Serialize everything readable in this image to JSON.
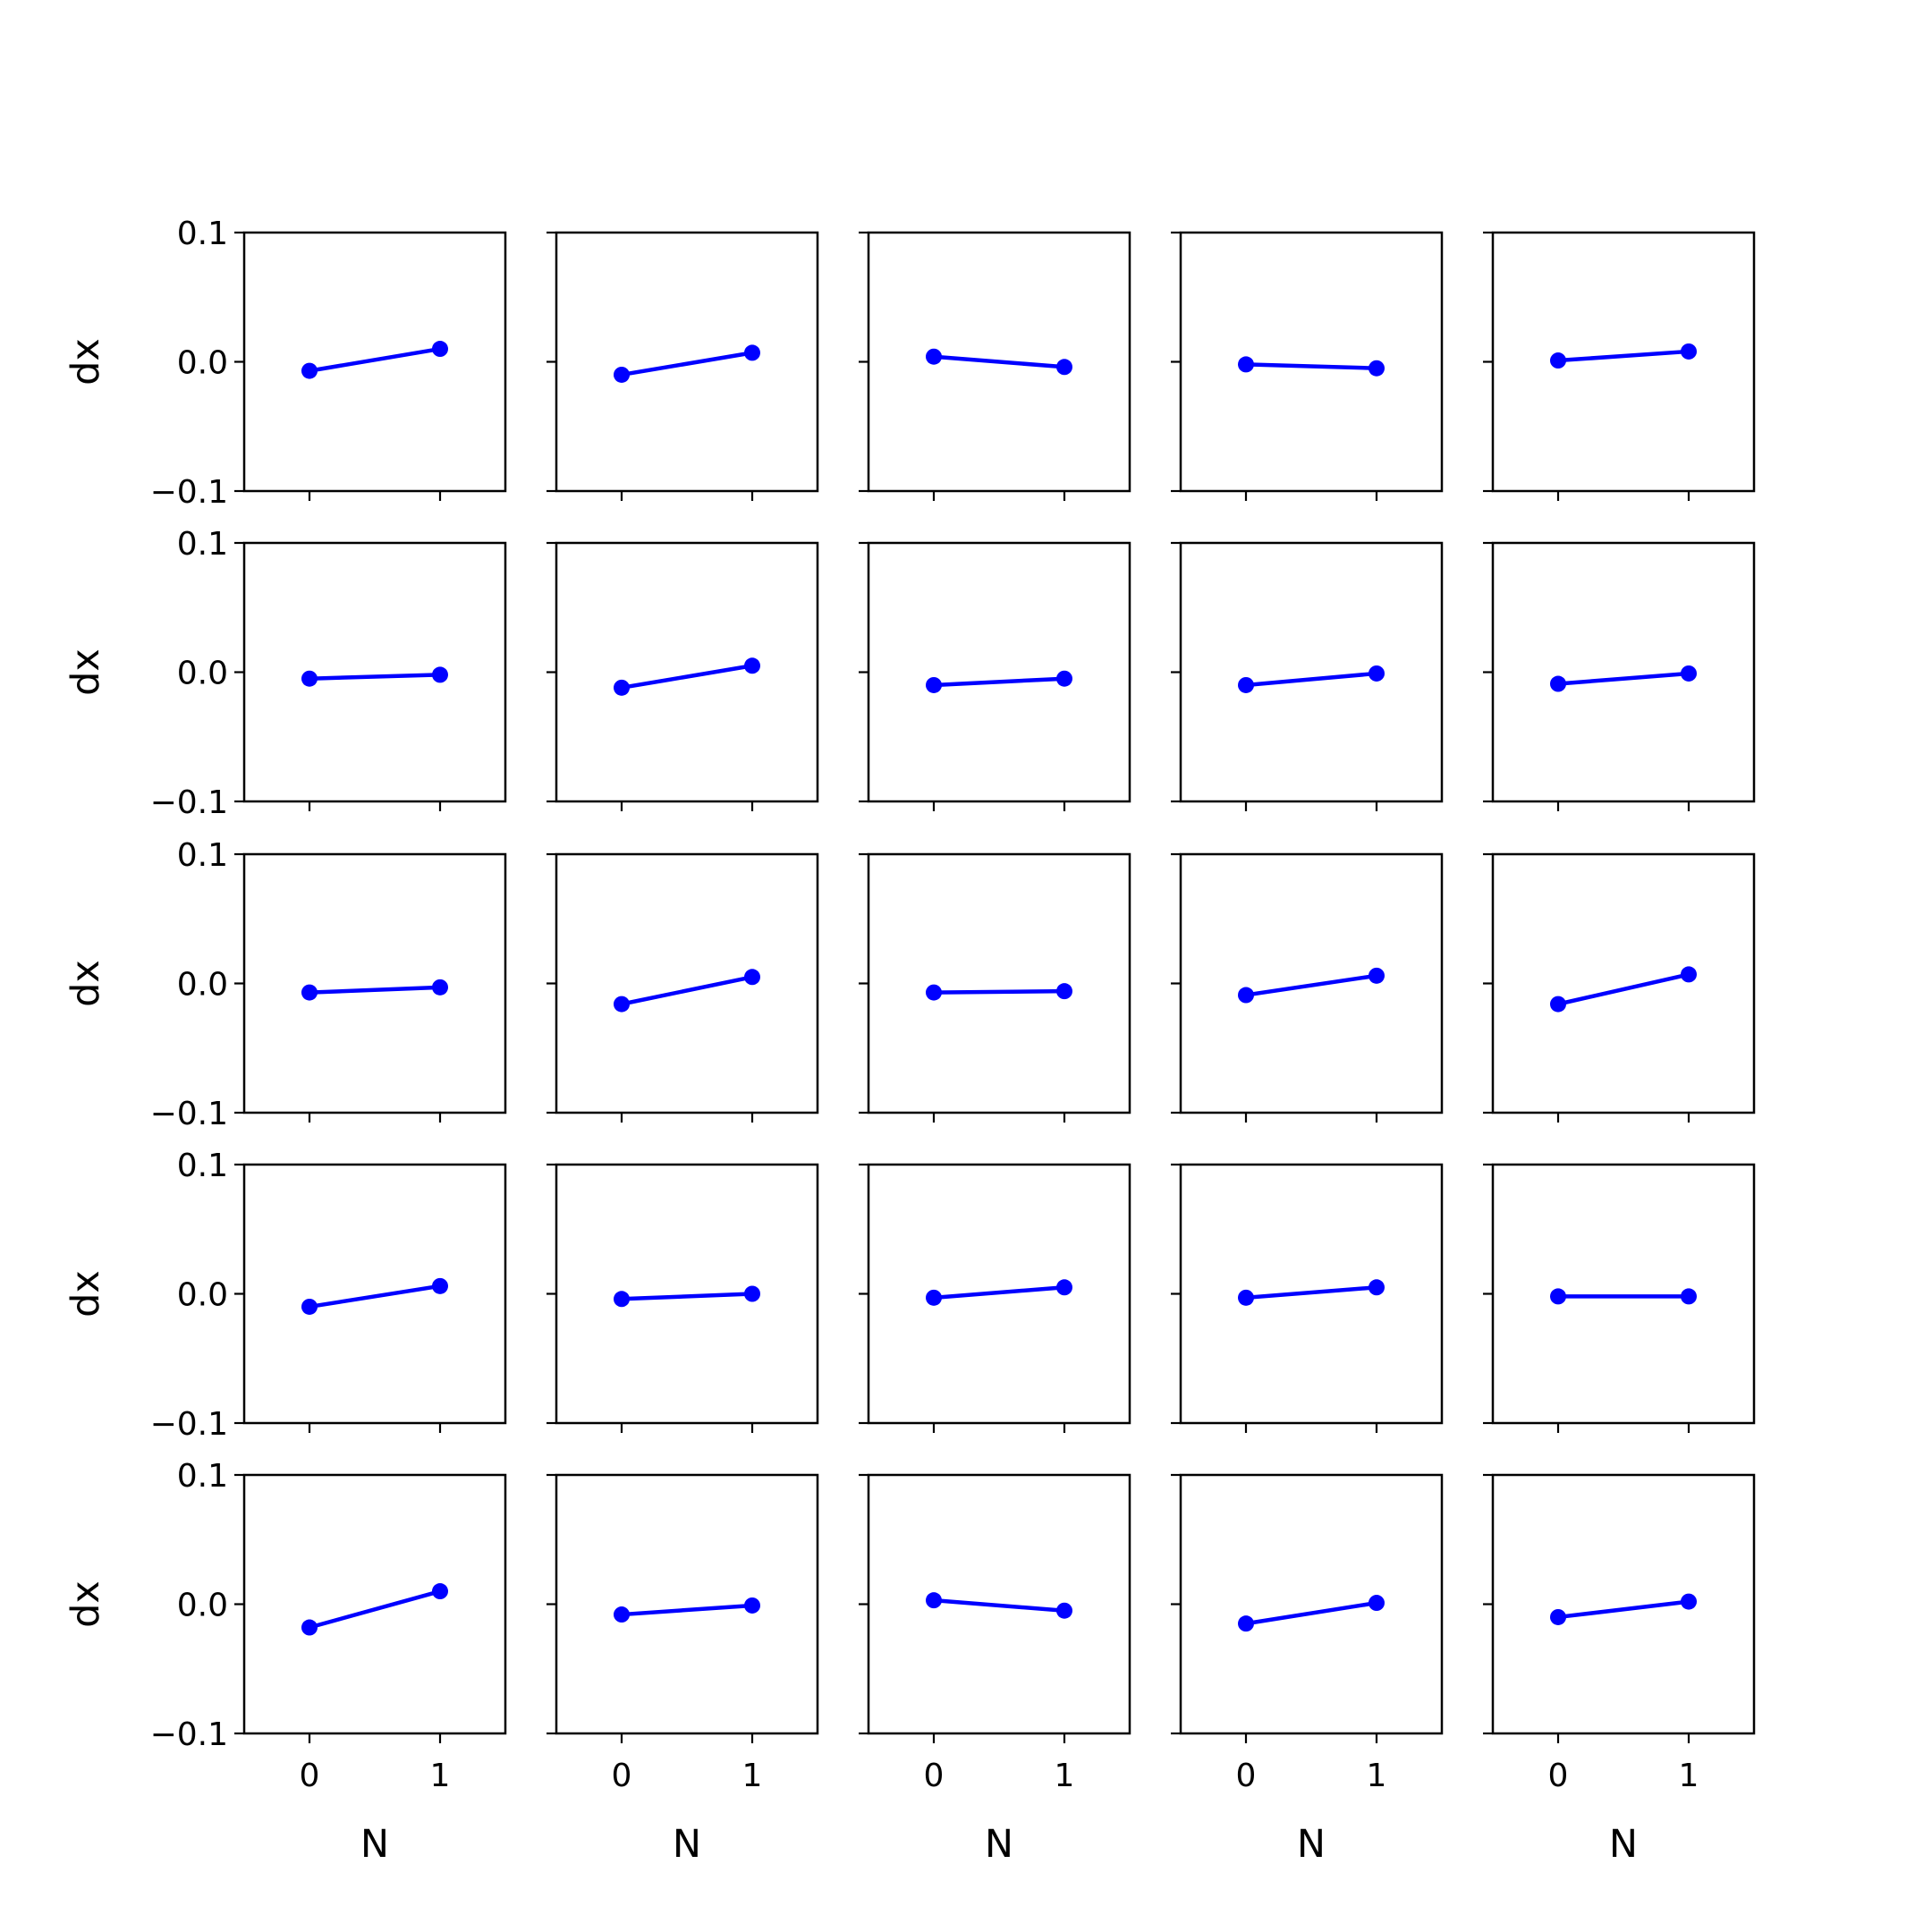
{
  "colors": {
    "series": "#0000ff",
    "axes": "#000000",
    "background": "#ffffff"
  },
  "chart_data": {
    "type": "line",
    "layout": "5x5 grid of subplots, shared axes",
    "xlabel": "N",
    "ylabel": "dx",
    "xticks": [
      "0",
      "1"
    ],
    "yticks": [
      "−0.1",
      "0.0",
      "0.1"
    ],
    "xlim": [
      -0.5,
      1.5
    ],
    "ylim": [
      -0.1,
      0.1
    ],
    "grid": false,
    "x": [
      0,
      1
    ],
    "panels": [
      [
        [
          -0.007,
          0.01
        ],
        [
          -0.01,
          0.007
        ],
        [
          0.004,
          -0.004
        ],
        [
          -0.002,
          -0.005
        ],
        [
          0.001,
          0.008
        ]
      ],
      [
        [
          -0.005,
          -0.002
        ],
        [
          -0.012,
          0.005
        ],
        [
          -0.01,
          -0.005
        ],
        [
          -0.01,
          -0.001
        ],
        [
          -0.009,
          -0.001
        ]
      ],
      [
        [
          -0.007,
          -0.003
        ],
        [
          -0.016,
          0.005
        ],
        [
          -0.007,
          -0.006
        ],
        [
          -0.009,
          0.006
        ],
        [
          -0.016,
          0.007
        ]
      ],
      [
        [
          -0.01,
          0.006
        ],
        [
          -0.004,
          0.0
        ],
        [
          -0.003,
          0.005
        ],
        [
          -0.003,
          0.005
        ],
        [
          -0.002,
          -0.002
        ]
      ],
      [
        [
          -0.018,
          0.01
        ],
        [
          -0.008,
          -0.001
        ],
        [
          0.003,
          -0.005
        ],
        [
          -0.015,
          0.001
        ],
        [
          -0.01,
          0.002
        ]
      ]
    ]
  }
}
